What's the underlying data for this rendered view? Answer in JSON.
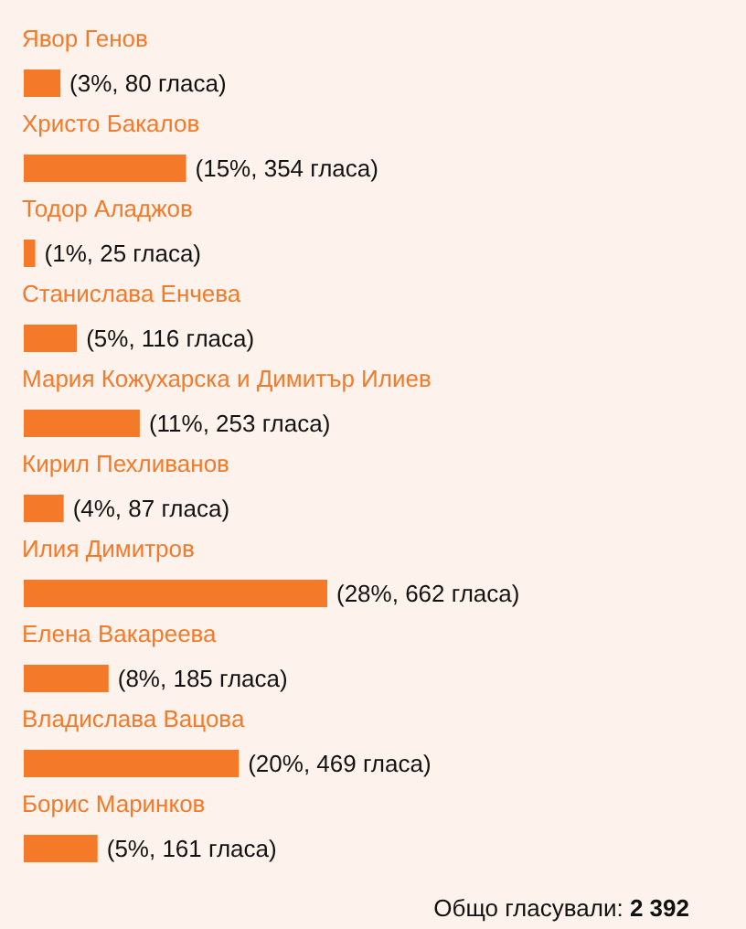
{
  "chart_data": {
    "type": "bar",
    "orientation": "horizontal",
    "categories": [
      "Явор Генов",
      "Христо Бакалов",
      "Тодор Аладжов",
      "Станислава Енчева",
      "Мария Кожухарска и Димитър Илиев",
      "Кирил Пехливанов",
      "Илия Димитров",
      "Елена Вакареева",
      "Владислава Вацова",
      "Борис Маринков"
    ],
    "values": [
      80,
      354,
      25,
      116,
      253,
      87,
      662,
      185,
      469,
      161
    ],
    "value_labels": [
      "(3%, 80 гласа)",
      "(15%, 354 гласа)",
      "(1%, 25 гласа)",
      "(5%, 116 гласа)",
      "(11%, 253 гласа)",
      "(4%, 87 гласа)",
      "(28%, 662 гласа)",
      "(8%, 185 гласа)",
      "(20%, 469 гласа)",
      "(5%, 161 гласа)"
    ],
    "color": "#f47a2a",
    "annotations": [
      "Общо гласували: 2 392"
    ]
  }
}
